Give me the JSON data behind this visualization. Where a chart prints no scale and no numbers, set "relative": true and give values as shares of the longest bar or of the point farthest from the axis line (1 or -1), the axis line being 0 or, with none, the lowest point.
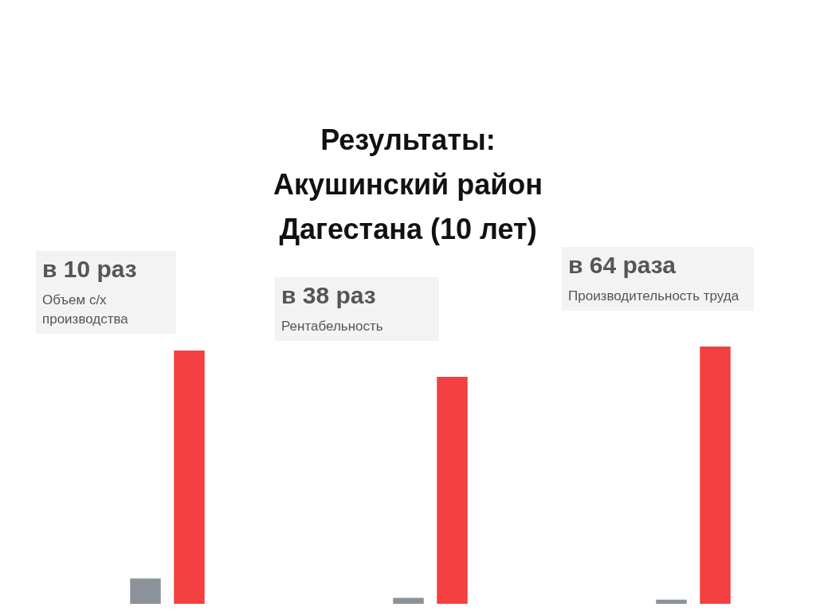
{
  "chart_data": [
    {
      "type": "other",
      "title": "Результаты:",
      "subtitle": "Акушинский район Дагестана (10 лет)"
    },
    {
      "type": "bar",
      "title": "в 10 раз",
      "subtitle": "Объем с/х производства",
      "categories": [
        null,
        null
      ],
      "values": [
        0.1,
        1
      ],
      "colors": [
        "#8c9299",
        "#f44040"
      ],
      "relative": true
    },
    {
      "type": "bar",
      "title": "в 38 раз",
      "subtitle": "Рентабельность",
      "categories": [
        null,
        null
      ],
      "values": [
        0.026,
        1
      ],
      "colors": [
        "#8c9299",
        "#f44040"
      ],
      "relative": true
    },
    {
      "type": "bar",
      "title": "в 64 раза",
      "subtitle": "Производительность труда",
      "categories": [
        null,
        null
      ],
      "values": [
        0.016,
        1
      ],
      "colors": [
        "#8c9299",
        "#f44040"
      ],
      "relative": true
    }
  ]
}
